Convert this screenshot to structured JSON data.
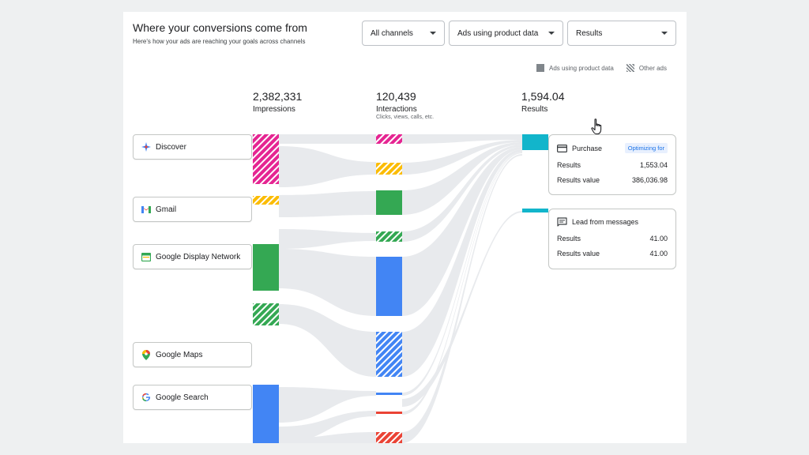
{
  "header": {
    "title": "Where your conversions come from",
    "subtitle": "Here's how your ads are reaching your goals across channels"
  },
  "filters": {
    "channel": "All channels",
    "ad_type": "Ads using product data",
    "metric": "Results"
  },
  "legend": {
    "solid_label": "Ads using product data",
    "hatched_label": "Other ads"
  },
  "stats": {
    "impressions": {
      "value": "2,382,331",
      "label": "Impressions"
    },
    "interactions": {
      "value": "120,439",
      "label": "Interactions",
      "sub": "Clicks, views, calls, etc."
    },
    "results": {
      "value": "1,594.04",
      "label": "Results"
    }
  },
  "channels": [
    {
      "name": "Discover",
      "icon": "discover-icon"
    },
    {
      "name": "Gmail",
      "icon": "gmail-icon"
    },
    {
      "name": "Google Display Network",
      "icon": "display-network-icon"
    },
    {
      "name": "Google Maps",
      "icon": "maps-pin-icon"
    },
    {
      "name": "Google Search",
      "icon": "google-g-icon"
    }
  ],
  "result_cards": [
    {
      "title": "Purchase",
      "icon": "credit-card-icon",
      "badge": "Optimizing for",
      "rows": [
        {
          "label": "Results",
          "value": "1,553.04"
        },
        {
          "label": "Results value",
          "value": "386,036.98"
        }
      ]
    },
    {
      "title": "Lead from messages",
      "icon": "message-icon",
      "rows": [
        {
          "label": "Results",
          "value": "41.00"
        },
        {
          "label": "Results value",
          "value": "41.00"
        }
      ]
    }
  ],
  "colors": {
    "discover": "#e52592",
    "gmail": "#fbbc04",
    "display": "#34a853",
    "search": "#4285f4",
    "red": "#ea4335",
    "results": "#12b5cb",
    "flow": "#e8eaed"
  }
}
